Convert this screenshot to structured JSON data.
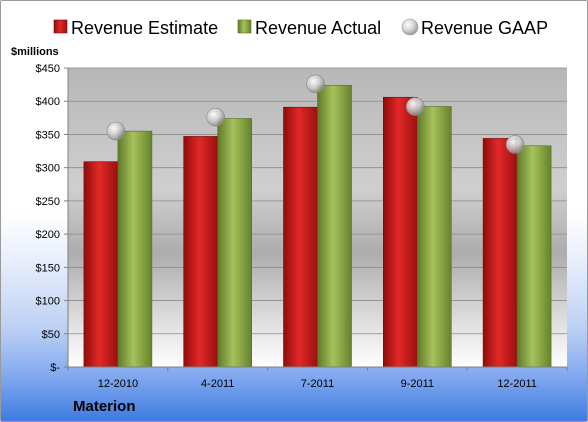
{
  "chart_data": {
    "type": "bar",
    "categories": [
      "12-2010",
      "4-2011",
      "7-2011",
      "9-2011",
      "12-2011"
    ],
    "series": [
      {
        "name": "Revenue Estimate",
        "type": "bar",
        "values": [
          309,
          347,
          391,
          406,
          344
        ],
        "color": "#d11a1a"
      },
      {
        "name": "Revenue Actual",
        "type": "bar",
        "values": [
          355,
          374,
          424,
          392,
          333
        ],
        "color": "#8fac4a"
      },
      {
        "name": "Revenue GAAP",
        "type": "marker",
        "values": [
          355,
          376,
          426,
          392,
          335
        ],
        "color": "#c8c8c8"
      }
    ],
    "ylabel": "$millions",
    "ylim": [
      0,
      450
    ],
    "yticks": [
      "$-",
      "$50",
      "$100",
      "$150",
      "$200",
      "$250",
      "$300",
      "$350",
      "$400",
      "$450"
    ],
    "legend_position": "top",
    "grid": true
  },
  "company": "Materion"
}
